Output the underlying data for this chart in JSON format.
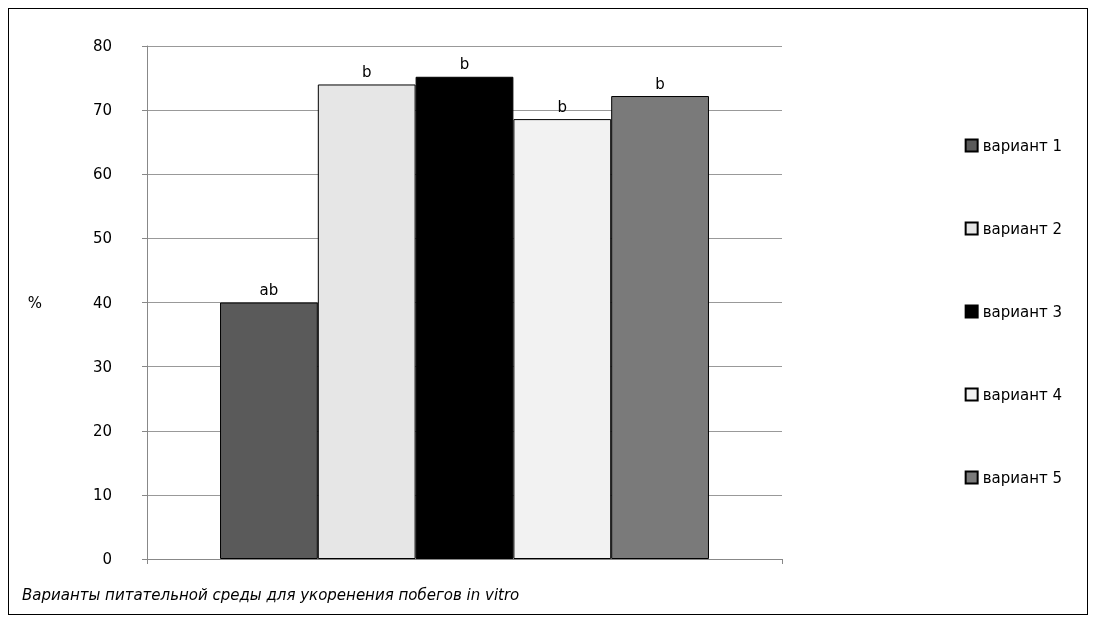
{
  "chart_data": {
    "type": "bar",
    "xlabel": "Варианты питательной среды для укоренения побегов in vitro",
    "ylabel": "%",
    "categories": [
      null
    ],
    "series": [
      {
        "name": "вариант 1",
        "color": "#5a5a5a",
        "values": [
          40
        ],
        "value_labels": [
          "ab"
        ]
      },
      {
        "name": "вариант 2",
        "color": "#e6e6e6",
        "values": [
          74
        ],
        "value_labels": [
          "b"
        ]
      },
      {
        "name": "вариант 3",
        "color": "#000000",
        "values": [
          75.2
        ],
        "value_labels": [
          "b"
        ]
      },
      {
        "name": "вариант 4",
        "color": "#f2f2f2",
        "values": [
          68.6
        ],
        "value_labels": [
          "b"
        ]
      },
      {
        "name": "вариант 5",
        "color": "#7a7a7a",
        "values": [
          72.2
        ],
        "value_labels": [
          "b"
        ]
      }
    ],
    "ylim": [
      0,
      80
    ],
    "yticks": [
      0,
      10,
      20,
      30,
      40,
      50,
      60,
      70,
      80
    ],
    "grid": "y",
    "legend": "right"
  }
}
